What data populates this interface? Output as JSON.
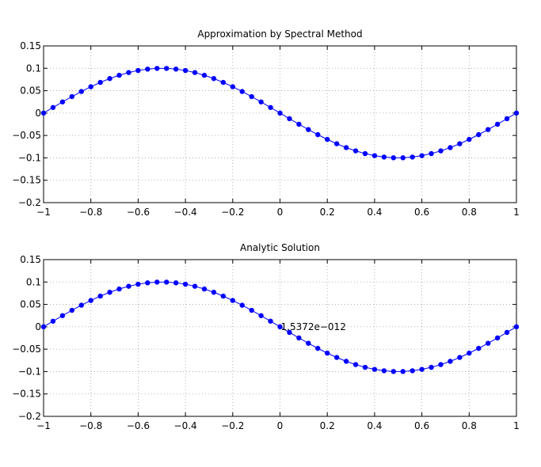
{
  "chart_data": [
    {
      "type": "line",
      "title": "Approximation by Spectral Method",
      "xlabel": "",
      "ylabel": "",
      "xlim": [
        -1,
        1
      ],
      "ylim": [
        -0.2,
        0.15
      ],
      "grid": true,
      "xticks": [
        -1,
        -0.8,
        -0.6,
        -0.4,
        -0.2,
        0,
        0.2,
        0.4,
        0.6,
        0.8,
        1
      ],
      "xtick_labels": [
        "−1",
        "−0.8",
        "−0.6",
        "−0.4",
        "−0.2",
        "0",
        "0.2",
        "0.4",
        "0.6",
        "0.8",
        "1"
      ],
      "yticks": [
        0.15,
        0.1,
        0.05,
        0,
        -0.05,
        -0.1,
        -0.15,
        -0.2
      ],
      "ytick_labels": [
        "0.15",
        "0.1",
        "0.05",
        "0",
        "−0.05",
        "−0.1",
        "−0.15",
        "−0.2"
      ],
      "series": [
        {
          "color": "#0000ff",
          "marker": "dot",
          "x": [
            -1,
            -0.96,
            -0.92,
            -0.88,
            -0.84,
            -0.8,
            -0.76,
            -0.72,
            -0.68,
            -0.64,
            -0.6,
            -0.56,
            -0.52,
            -0.48,
            -0.44,
            -0.4,
            -0.36,
            -0.32,
            -0.28,
            -0.24,
            -0.2,
            -0.16,
            -0.12,
            -0.08,
            -0.04,
            0,
            0.04,
            0.08,
            0.12,
            0.16,
            0.2,
            0.24,
            0.28,
            0.32,
            0.36,
            0.4,
            0.44,
            0.48,
            0.52,
            0.56,
            0.6,
            0.64,
            0.68,
            0.72,
            0.76,
            0.8,
            0.84,
            0.88,
            0.92,
            0.96,
            1
          ],
          "y": [
            0,
            0.0125,
            0.0249,
            0.0368,
            0.0482,
            0.0588,
            0.0685,
            0.0771,
            0.0844,
            0.0905,
            0.0951,
            0.0982,
            0.0998,
            0.0998,
            0.0982,
            0.0951,
            0.0905,
            0.0844,
            0.0771,
            0.0685,
            0.0588,
            0.0482,
            0.0368,
            0.0249,
            0.0125,
            0,
            -0.0125,
            -0.0249,
            -0.0368,
            -0.0482,
            -0.0588,
            -0.0685,
            -0.0771,
            -0.0844,
            -0.0905,
            -0.0951,
            -0.0982,
            -0.0998,
            -0.0998,
            -0.0982,
            -0.0951,
            -0.0905,
            -0.0844,
            -0.0771,
            -0.0685,
            -0.0588,
            -0.0482,
            -0.0368,
            -0.0249,
            -0.0125,
            0
          ]
        }
      ]
    },
    {
      "type": "line",
      "title": "Analytic Solution",
      "xlabel": "",
      "ylabel": "",
      "xlim": [
        -1,
        1
      ],
      "ylim": [
        -0.2,
        0.15
      ],
      "grid": true,
      "xticks": [
        -1,
        -0.8,
        -0.6,
        -0.4,
        -0.2,
        0,
        0.2,
        0.4,
        0.6,
        0.8,
        1
      ],
      "xtick_labels": [
        "−1",
        "−0.8",
        "−0.6",
        "−0.4",
        "−0.2",
        "0",
        "0.2",
        "0.4",
        "0.6",
        "0.8",
        "1"
      ],
      "yticks": [
        0.15,
        0.1,
        0.05,
        0,
        -0.05,
        -0.1,
        -0.15,
        -0.2
      ],
      "ytick_labels": [
        "0.15",
        "0.1",
        "0.05",
        "0",
        "−0.05",
        "−0.1",
        "−0.15",
        "−0.2"
      ],
      "annotations": [
        {
          "text": "1.5372e−012",
          "x": 0,
          "y": 0
        }
      ],
      "series": [
        {
          "color": "#0000ff",
          "marker": "dot",
          "x": [
            -1,
            -0.96,
            -0.92,
            -0.88,
            -0.84,
            -0.8,
            -0.76,
            -0.72,
            -0.68,
            -0.64,
            -0.6,
            -0.56,
            -0.52,
            -0.48,
            -0.44,
            -0.4,
            -0.36,
            -0.32,
            -0.28,
            -0.24,
            -0.2,
            -0.16,
            -0.12,
            -0.08,
            -0.04,
            0,
            0.04,
            0.08,
            0.12,
            0.16,
            0.2,
            0.24,
            0.28,
            0.32,
            0.36,
            0.4,
            0.44,
            0.48,
            0.52,
            0.56,
            0.6,
            0.64,
            0.68,
            0.72,
            0.76,
            0.8,
            0.84,
            0.88,
            0.92,
            0.96,
            1
          ],
          "y": [
            0,
            0.0125,
            0.0249,
            0.0368,
            0.0482,
            0.0588,
            0.0685,
            0.0771,
            0.0844,
            0.0905,
            0.0951,
            0.0982,
            0.0998,
            0.0998,
            0.0982,
            0.0951,
            0.0905,
            0.0844,
            0.0771,
            0.0685,
            0.0588,
            0.0482,
            0.0368,
            0.0249,
            0.0125,
            0,
            -0.0125,
            -0.0249,
            -0.0368,
            -0.0482,
            -0.0588,
            -0.0685,
            -0.0771,
            -0.0844,
            -0.0905,
            -0.0951,
            -0.0982,
            -0.0998,
            -0.0998,
            -0.0982,
            -0.0951,
            -0.0905,
            -0.0844,
            -0.0771,
            -0.0685,
            -0.0588,
            -0.0482,
            -0.0368,
            -0.0249,
            -0.0125,
            0
          ]
        }
      ]
    }
  ]
}
